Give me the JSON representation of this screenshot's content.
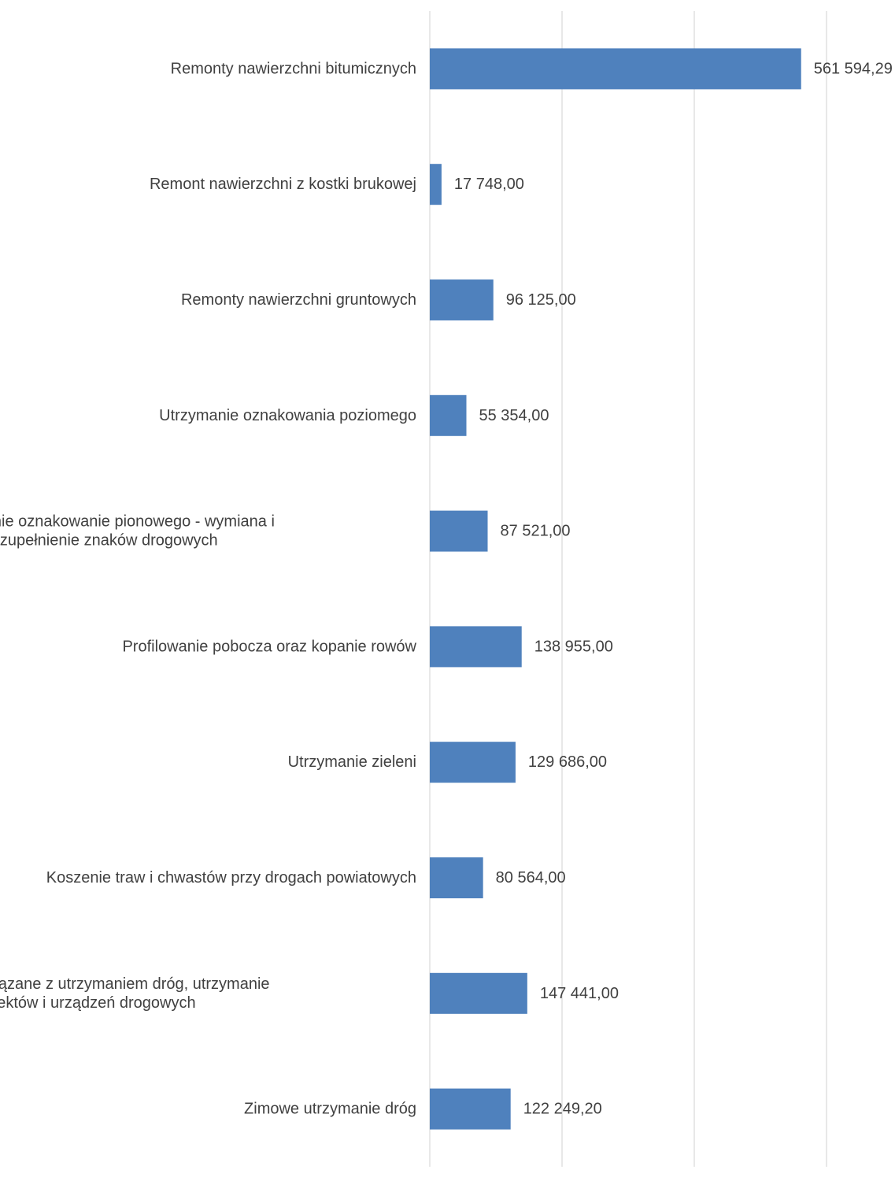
{
  "chart_data": {
    "type": "bar",
    "orientation": "horizontal",
    "categories": [
      [
        "Remonty nawierzchni bitumicznych"
      ],
      [
        "Remont nawierzchni z kostki brukowej"
      ],
      [
        "Remonty nawierzchni gruntowych"
      ],
      [
        "Utrzymanie  oznakowania poziomego"
      ],
      [
        "Utrzymanie oznakowanie pionowego - wymiana i",
        "uzupełnienie znaków drogowych"
      ],
      [
        "Profilowanie pobocza oraz kopanie rowów"
      ],
      [
        "Utrzymanie zieleni"
      ],
      [
        "Koszenie traw i chwastów przy drogach powiatowych"
      ],
      [
        "Pozostałe związane z utrzymaniem dróg, utrzymanie",
        "obiektów i urządzeń drogowych"
      ],
      [
        "Zimowe utrzymanie dróg"
      ]
    ],
    "values": [
      561594.29,
      17748.0,
      96125.0,
      55354.0,
      87521.0,
      138955.0,
      129686.0,
      80564.0,
      147441.0,
      122249.2
    ],
    "value_labels": [
      "561 594,29",
      "17 748,00",
      "96 125,00",
      "55 354,00",
      "87 521,00",
      "138 955,00",
      "129 686,00",
      "80 564,00",
      "147 441,00",
      "122 249,20"
    ],
    "xlim": [
      0,
      600000
    ],
    "x_gridlines": [
      0,
      200000,
      400000,
      600000
    ],
    "x_tick_labels_visible": false,
    "grid": true,
    "legend": "none",
    "bar_color": "#4f81bd",
    "grid_color": "#d9d9d9",
    "text_color": "#404040",
    "title": "",
    "xlabel": "",
    "ylabel": ""
  }
}
